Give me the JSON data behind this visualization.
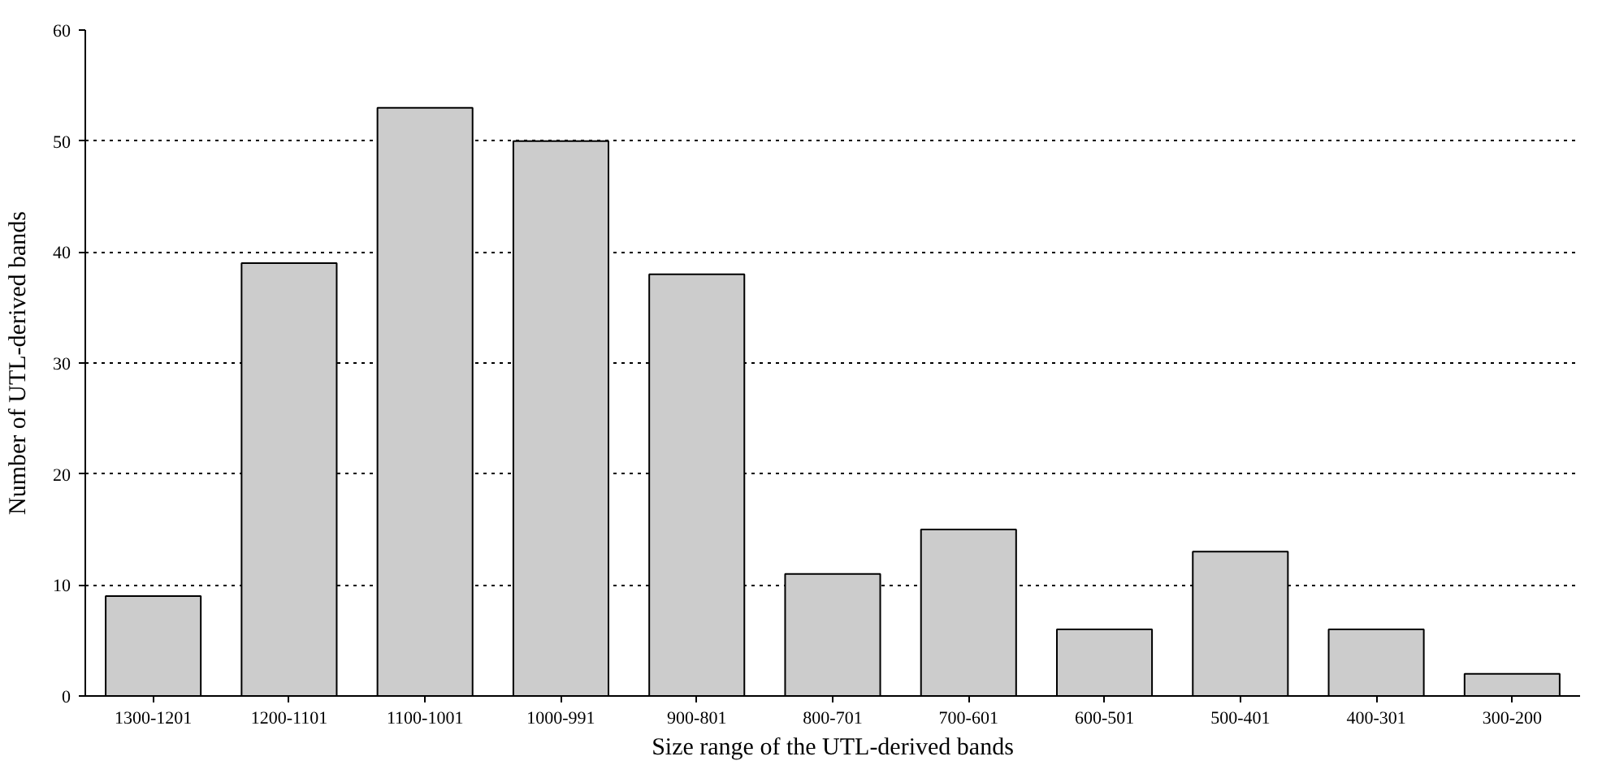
{
  "chart_data": {
    "type": "bar",
    "xlabel": "Size range of the UTL-derived bands",
    "ylabel": "Number of UTL-derived bands",
    "categories": [
      "1300-1201",
      "1200-1101",
      "1100-1001",
      "1000-991",
      "900-801",
      "800-701",
      "700-601",
      "600-501",
      "500-401",
      "400-301",
      "300-200"
    ],
    "values": [
      9,
      39,
      53,
      50,
      38,
      11,
      15,
      6,
      13,
      6,
      2
    ],
    "color": "#cccccc",
    "ylim": [
      0,
      60
    ],
    "yticks": [
      0,
      10,
      20,
      30,
      40,
      50,
      60
    ],
    "grid": "y"
  }
}
